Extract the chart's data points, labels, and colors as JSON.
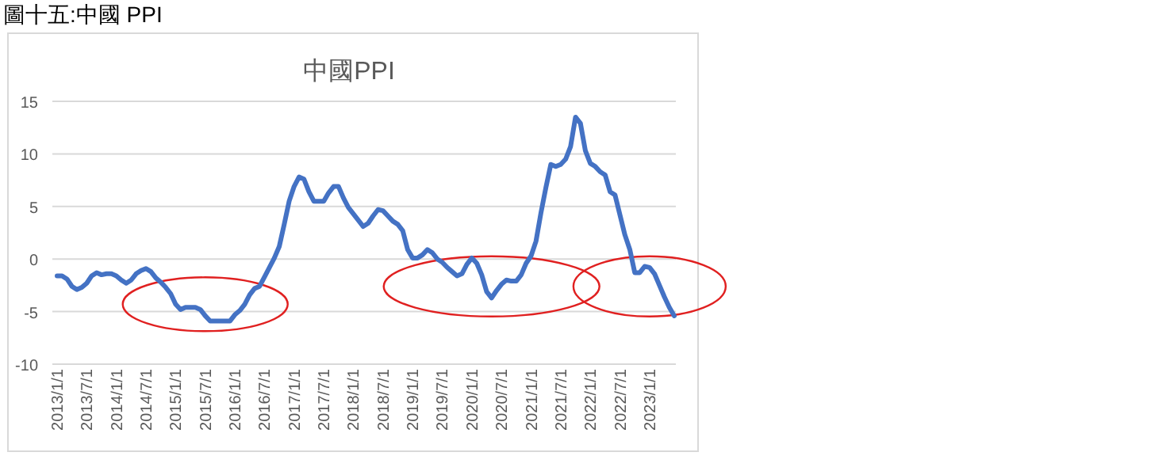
{
  "chart_data": {
    "type": "line",
    "title": "中國PPI",
    "annotations": [
      "圖十五:中國 PPI"
    ],
    "categories": [
      "2013/1/1",
      null,
      null,
      null,
      null,
      null,
      "2013/7/1",
      null,
      null,
      null,
      null,
      null,
      "2014/1/1",
      null,
      null,
      null,
      null,
      null,
      "2014/7/1",
      null,
      null,
      null,
      null,
      null,
      "2015/1/1",
      null,
      null,
      null,
      null,
      null,
      "2015/7/1",
      null,
      null,
      null,
      null,
      null,
      "2016/1/1",
      null,
      null,
      null,
      null,
      null,
      "2016/7/1",
      null,
      null,
      null,
      null,
      null,
      "2017/1/1",
      null,
      null,
      null,
      null,
      null,
      "2017/7/1",
      null,
      null,
      null,
      null,
      null,
      "2018/1/1",
      null,
      null,
      null,
      null,
      null,
      "2018/7/1",
      null,
      null,
      null,
      null,
      null,
      "2019/1/1",
      null,
      null,
      null,
      null,
      null,
      "2019/7/1",
      null,
      null,
      null,
      null,
      null,
      "2020/1/1",
      null,
      null,
      null,
      null,
      null,
      "2020/7/1",
      null,
      null,
      null,
      null,
      null,
      "2021/1/1",
      null,
      null,
      null,
      null,
      null,
      "2021/7/1",
      null,
      null,
      null,
      null,
      null,
      "2022/1/1",
      null,
      null,
      null,
      null,
      null,
      "2022/7/1",
      null,
      null,
      null,
      null,
      null,
      "2023/1/1",
      null,
      null,
      null,
      null,
      null
    ],
    "series": [
      {
        "color": "#4472c4",
        "values": [
          -1.6,
          -1.6,
          -1.9,
          -2.6,
          -2.9,
          -2.7,
          -2.3,
          -1.6,
          -1.3,
          -1.5,
          -1.4,
          -1.4,
          -1.6,
          -2.0,
          -2.3,
          -2.0,
          -1.4,
          -1.1,
          -0.9,
          -1.2,
          -1.8,
          -2.2,
          -2.7,
          -3.3,
          -4.3,
          -4.8,
          -4.6,
          -4.6,
          -4.6,
          -4.8,
          -5.4,
          -5.9,
          -5.9,
          -5.9,
          -5.9,
          -5.9,
          -5.3,
          -4.9,
          -4.3,
          -3.4,
          -2.8,
          -2.6,
          -1.7,
          -0.8,
          0.1,
          1.2,
          3.3,
          5.5,
          6.9,
          7.8,
          7.6,
          6.4,
          5.5,
          5.5,
          5.5,
          6.3,
          6.9,
          6.9,
          5.8,
          4.9,
          4.3,
          3.7,
          3.1,
          3.4,
          4.1,
          4.7,
          4.6,
          4.1,
          3.6,
          3.3,
          2.7,
          0.9,
          0.1,
          0.1,
          0.4,
          0.9,
          0.6,
          0.0,
          -0.3,
          -0.8,
          -1.2,
          -1.6,
          -1.4,
          -0.5,
          0.1,
          -0.4,
          -1.5,
          -3.1,
          -3.7,
          -3.0,
          -2.4,
          -2.0,
          -2.1,
          -2.1,
          -1.5,
          -0.4,
          0.3,
          1.7,
          4.4,
          6.8,
          9.0,
          8.8,
          9.0,
          9.5,
          10.7,
          13.5,
          12.9,
          10.3,
          9.1,
          8.8,
          8.3,
          8.0,
          6.4,
          6.1,
          4.2,
          2.3,
          0.9,
          -1.3,
          -1.3,
          -0.7,
          -0.8,
          -1.4,
          -2.5,
          -3.6,
          -4.6,
          -5.4
        ]
      }
    ],
    "ylim": [
      -10,
      15
    ],
    "yticks": [
      -10,
      -5,
      0,
      5,
      10,
      15
    ],
    "grid": "y"
  }
}
